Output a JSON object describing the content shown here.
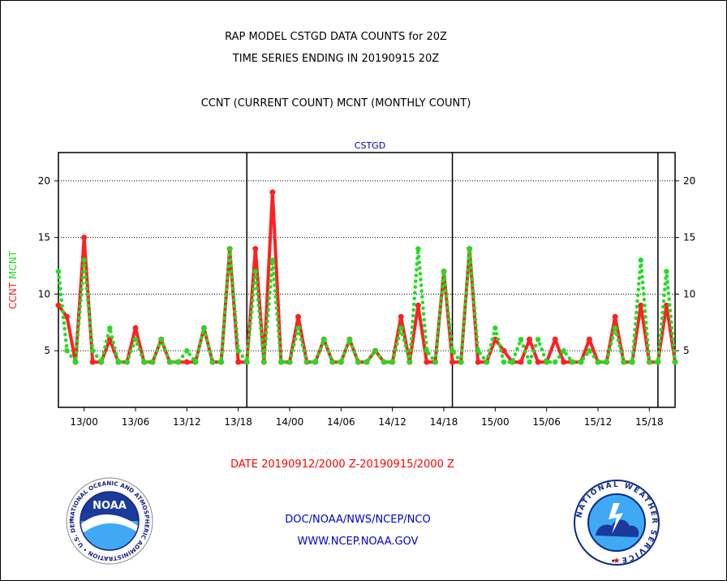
{
  "header": {
    "title_line1": "RAP MODEL CSTGD DATA COUNTS for 20Z",
    "title_line2": "TIME SERIES ENDING IN 20190915 20Z",
    "subtitle": "CCNT (CURRENT COUNT) MCNT (MONTHLY COUNT)"
  },
  "footer": {
    "date_range": "DATE 20190912/2000 Z-20190915/2000 Z",
    "credit": "DOC/NOAA/NWS/NCEP/NCO",
    "url": "WWW.NCEP.NOAA.GOV"
  },
  "logos": {
    "noaa_text": "NOAA",
    "noaa_ring": "NATIONAL OCEANIC AND ATMOSPHERIC ADMINISTRATION • U.S. DEPARTMENT OF COMMERCE •",
    "nws_ring": "NATIONAL WEATHER SERVICE •"
  },
  "colors": {
    "ccnt": "#ff2020",
    "mcnt": "#22dd22",
    "title_blue": "#0000cc",
    "date_red": "#ff0000"
  },
  "chart_data": {
    "type": "line",
    "title": "CSTGD",
    "ylabel_series": [
      {
        "text": "CCNT",
        "color": "#ff2020"
      },
      {
        "text": "MCNT",
        "color": "#22dd22"
      }
    ],
    "ylim": [
      0,
      22.5
    ],
    "yticks": [
      5,
      10,
      15,
      20
    ],
    "xlim": [
      0,
      72
    ],
    "xtick_hours": [
      3,
      9,
      15,
      21,
      27,
      33,
      39,
      45,
      51,
      57,
      63,
      69
    ],
    "xtick_labels": [
      "13/00",
      "13/06",
      "13/12",
      "13/18",
      "14/00",
      "14/06",
      "14/12",
      "14/18",
      "15/00",
      "15/06",
      "15/12",
      "15/18"
    ],
    "day_dividers": [
      22,
      46,
      70
    ],
    "grid": true,
    "series": [
      {
        "name": "CCNT",
        "style": "solid",
        "x": [
          0,
          1,
          2,
          3,
          4,
          5,
          6,
          7,
          8,
          9,
          10,
          11,
          12,
          13,
          14,
          15,
          16,
          17,
          18,
          19,
          20,
          21,
          22,
          23,
          24,
          25,
          26,
          27,
          28,
          29,
          30,
          31,
          32,
          33,
          34,
          35,
          36,
          37,
          38,
          39,
          40,
          41,
          42,
          43,
          44,
          45,
          46,
          47,
          48,
          49,
          50,
          51,
          52,
          53,
          54,
          55,
          56,
          57,
          58,
          59,
          60,
          61,
          62,
          63,
          64,
          65,
          66,
          67,
          68,
          69,
          70,
          71,
          72
        ],
        "values": [
          9,
          8,
          4,
          15,
          4,
          4,
          6,
          4,
          4,
          7,
          4,
          4,
          6,
          4,
          4,
          4,
          4,
          7,
          4,
          4,
          14,
          4,
          4,
          14,
          4,
          19,
          4,
          4,
          8,
          4,
          4,
          6,
          4,
          4,
          6,
          4,
          4,
          5,
          4,
          4,
          8,
          4,
          9,
          4,
          4,
          12,
          4,
          4,
          14,
          4,
          4,
          6,
          5,
          4,
          4,
          6,
          4,
          4,
          6,
          4,
          4,
          4,
          6,
          4,
          4,
          8,
          4,
          4,
          9,
          4,
          4,
          9,
          4
        ]
      },
      {
        "name": "MCNT",
        "style": "dotted",
        "x": [
          0,
          1,
          2,
          3,
          4,
          5,
          6,
          7,
          8,
          9,
          10,
          11,
          12,
          13,
          14,
          15,
          16,
          17,
          18,
          19,
          20,
          21,
          22,
          23,
          24,
          25,
          26,
          27,
          28,
          29,
          30,
          31,
          32,
          33,
          34,
          35,
          36,
          37,
          38,
          39,
          40,
          41,
          42,
          43,
          44,
          45,
          46,
          47,
          48,
          49,
          50,
          51,
          52,
          53,
          54,
          55,
          56,
          57,
          58,
          59,
          60,
          61,
          62,
          63,
          64,
          65,
          66,
          67,
          68,
          69,
          70,
          71,
          72
        ],
        "values": [
          12,
          5,
          4,
          13,
          5,
          4,
          7,
          4,
          4,
          6,
          4,
          4,
          6,
          4,
          4,
          5,
          4,
          7,
          4,
          4,
          14,
          5,
          4,
          12,
          4,
          13,
          4,
          4,
          7,
          4,
          4,
          6,
          4,
          4,
          6,
          4,
          4,
          5,
          4,
          4,
          7,
          4,
          14,
          5,
          4,
          12,
          5,
          4,
          14,
          5,
          4,
          7,
          4,
          4,
          6,
          4,
          6,
          4,
          4,
          5,
          4,
          4,
          5,
          4,
          4,
          7,
          4,
          4,
          13,
          4,
          4,
          12,
          4
        ]
      }
    ]
  }
}
